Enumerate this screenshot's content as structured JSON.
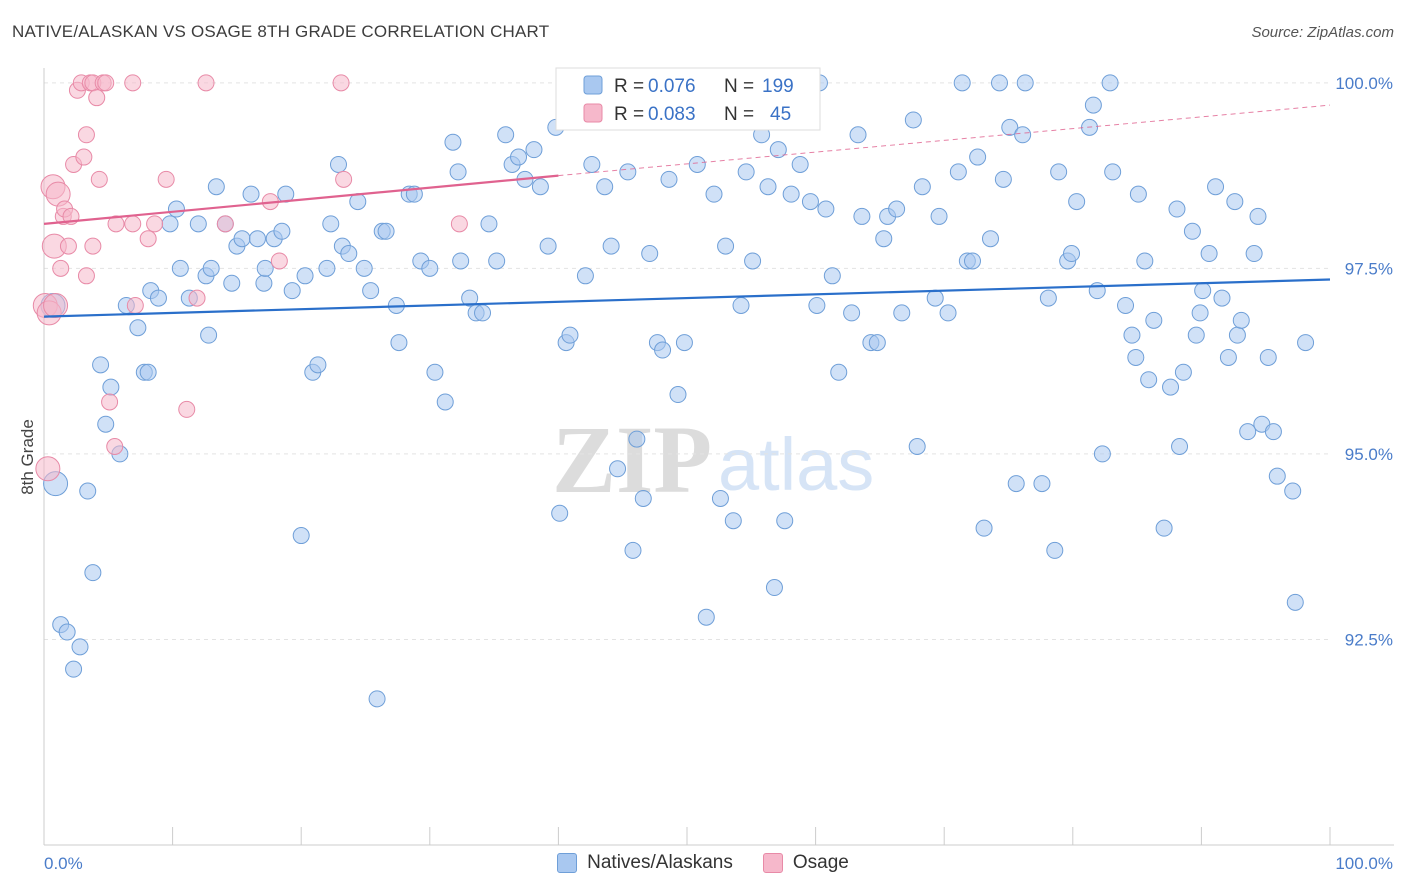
{
  "title": "NATIVE/ALASKAN VS OSAGE 8TH GRADE CORRELATION CHART",
  "source": "Source: ZipAtlas.com",
  "watermark": {
    "zip": "ZIP",
    "atlas": "atlas"
  },
  "stats": [
    {
      "r_label": "R =",
      "r_value": "0.076",
      "n_label": "N =",
      "n_value": "199"
    },
    {
      "r_label": "R =",
      "r_value": "0.083",
      "n_label": "N =",
      "n_value": "45"
    }
  ],
  "colors": {
    "blue_fill": "#a9c8f0",
    "blue_stroke": "#6f9fd8",
    "blue_line": "#2a6fca",
    "pink_fill": "#f6b8cb",
    "pink_stroke": "#e88aa7",
    "pink_line": "#e0628f",
    "tick_label": "#4a7cc9",
    "grid": "#e3e3e3"
  },
  "chart_data": {
    "type": "scatter",
    "title": "NATIVE/ALASKAN VS OSAGE 8TH GRADE CORRELATION CHART",
    "xlabel": "",
    "ylabel": "8th Grade",
    "xlim": [
      0,
      100
    ],
    "ylim": [
      90.0,
      100.2
    ],
    "x_tick_labels": [
      "0.0%",
      "100.0%"
    ],
    "y_ticks": [
      92.5,
      95.0,
      97.5,
      100.0
    ],
    "y_tick_labels": [
      "92.5%",
      "95.0%",
      "97.5%",
      "100.0%"
    ],
    "grid": true,
    "legend_position": "bottom-center",
    "series": [
      {
        "name": "Natives/Alaskans",
        "color": "#a9c8f0",
        "trend": {
          "x": [
            0,
            100
          ],
          "y": [
            96.85,
            97.35
          ],
          "dashed_from": null
        },
        "points": [
          [
            0.7,
            97.0
          ],
          [
            0.9,
            94.6
          ],
          [
            1.3,
            92.7
          ],
          [
            1.8,
            92.6
          ],
          [
            2.3,
            92.1
          ],
          [
            2.8,
            92.4
          ],
          [
            3.4,
            94.5
          ],
          [
            3.8,
            93.4
          ],
          [
            4.4,
            96.2
          ],
          [
            4.8,
            95.4
          ],
          [
            5.2,
            95.9
          ],
          [
            5.9,
            95.0
          ],
          [
            6.4,
            97.0
          ],
          [
            7.3,
            96.7
          ],
          [
            7.8,
            96.1
          ],
          [
            8.1,
            96.1
          ],
          [
            8.3,
            97.2
          ],
          [
            8.9,
            97.1
          ],
          [
            9.8,
            98.1
          ],
          [
            10.3,
            98.3
          ],
          [
            10.6,
            97.5
          ],
          [
            11.3,
            97.1
          ],
          [
            12.0,
            98.1
          ],
          [
            12.6,
            97.4
          ],
          [
            12.8,
            96.6
          ],
          [
            13.0,
            97.5
          ],
          [
            13.4,
            98.6
          ],
          [
            14.1,
            98.1
          ],
          [
            14.6,
            97.3
          ],
          [
            15.0,
            97.8
          ],
          [
            15.4,
            97.9
          ],
          [
            16.1,
            98.5
          ],
          [
            16.6,
            97.9
          ],
          [
            17.1,
            97.3
          ],
          [
            17.2,
            97.5
          ],
          [
            17.9,
            97.9
          ],
          [
            18.5,
            98.0
          ],
          [
            18.8,
            98.5
          ],
          [
            19.3,
            97.2
          ],
          [
            20.0,
            93.9
          ],
          [
            20.3,
            97.4
          ],
          [
            20.9,
            96.1
          ],
          [
            21.3,
            96.2
          ],
          [
            22.0,
            97.5
          ],
          [
            22.3,
            98.1
          ],
          [
            22.9,
            98.9
          ],
          [
            23.2,
            97.8
          ],
          [
            23.7,
            97.7
          ],
          [
            24.4,
            98.4
          ],
          [
            24.9,
            97.5
          ],
          [
            25.4,
            97.2
          ],
          [
            25.9,
            91.7
          ],
          [
            26.3,
            98.0
          ],
          [
            26.6,
            98.0
          ],
          [
            27.4,
            97.0
          ],
          [
            27.6,
            96.5
          ],
          [
            28.4,
            98.5
          ],
          [
            28.8,
            98.5
          ],
          [
            29.3,
            97.6
          ],
          [
            30.0,
            97.5
          ],
          [
            30.4,
            96.1
          ],
          [
            31.2,
            95.7
          ],
          [
            31.8,
            99.2
          ],
          [
            32.2,
            98.8
          ],
          [
            32.4,
            97.6
          ],
          [
            33.1,
            97.1
          ],
          [
            33.6,
            96.9
          ],
          [
            34.1,
            96.9
          ],
          [
            34.6,
            98.1
          ],
          [
            35.2,
            97.6
          ],
          [
            35.9,
            99.3
          ],
          [
            36.4,
            98.9
          ],
          [
            36.9,
            99.0
          ],
          [
            37.4,
            98.7
          ],
          [
            38.1,
            99.1
          ],
          [
            38.6,
            98.6
          ],
          [
            39.2,
            97.8
          ],
          [
            39.8,
            99.4
          ],
          [
            40.1,
            94.2
          ],
          [
            40.6,
            96.5
          ],
          [
            40.9,
            96.6
          ],
          [
            42.1,
            97.4
          ],
          [
            42.6,
            98.9
          ],
          [
            43.6,
            98.6
          ],
          [
            44.1,
            97.8
          ],
          [
            44.6,
            94.8
          ],
          [
            45.4,
            98.8
          ],
          [
            45.8,
            93.7
          ],
          [
            46.1,
            95.2
          ],
          [
            46.6,
            94.4
          ],
          [
            47.1,
            97.7
          ],
          [
            47.7,
            96.5
          ],
          [
            48.1,
            96.4
          ],
          [
            48.6,
            98.7
          ],
          [
            49.3,
            95.8
          ],
          [
            49.8,
            96.5
          ],
          [
            50.8,
            98.9
          ],
          [
            51.5,
            92.8
          ],
          [
            51.8,
            99.9
          ],
          [
            52.1,
            98.5
          ],
          [
            52.6,
            94.4
          ],
          [
            53.0,
            97.8
          ],
          [
            53.6,
            94.1
          ],
          [
            54.2,
            97.0
          ],
          [
            54.6,
            98.8
          ],
          [
            55.1,
            97.6
          ],
          [
            55.8,
            99.3
          ],
          [
            56.3,
            98.6
          ],
          [
            56.8,
            93.2
          ],
          [
            57.1,
            99.1
          ],
          [
            57.6,
            94.1
          ],
          [
            58.1,
            98.5
          ],
          [
            58.8,
            98.9
          ],
          [
            59.6,
            98.4
          ],
          [
            60.1,
            97.0
          ],
          [
            60.3,
            100.0
          ],
          [
            60.8,
            98.3
          ],
          [
            61.3,
            97.4
          ],
          [
            61.8,
            96.1
          ],
          [
            62.8,
            96.9
          ],
          [
            63.3,
            99.3
          ],
          [
            63.6,
            98.2
          ],
          [
            64.3,
            96.5
          ],
          [
            64.8,
            96.5
          ],
          [
            65.3,
            97.9
          ],
          [
            65.6,
            98.2
          ],
          [
            66.3,
            98.3
          ],
          [
            66.7,
            96.9
          ],
          [
            67.6,
            99.5
          ],
          [
            67.9,
            95.1
          ],
          [
            68.3,
            98.6
          ],
          [
            69.3,
            97.1
          ],
          [
            69.6,
            98.2
          ],
          [
            70.3,
            96.9
          ],
          [
            71.1,
            98.8
          ],
          [
            71.4,
            100.0
          ],
          [
            71.8,
            97.6
          ],
          [
            72.2,
            97.6
          ],
          [
            72.6,
            99.0
          ],
          [
            73.1,
            94.0
          ],
          [
            73.6,
            97.9
          ],
          [
            74.3,
            100.0
          ],
          [
            74.6,
            98.7
          ],
          [
            75.1,
            99.4
          ],
          [
            75.6,
            94.6
          ],
          [
            76.1,
            99.3
          ],
          [
            76.3,
            100.0
          ],
          [
            77.6,
            94.6
          ],
          [
            78.1,
            97.1
          ],
          [
            78.6,
            93.7
          ],
          [
            78.9,
            98.8
          ],
          [
            79.6,
            97.6
          ],
          [
            79.9,
            97.7
          ],
          [
            80.3,
            98.4
          ],
          [
            81.3,
            99.4
          ],
          [
            81.6,
            99.7
          ],
          [
            81.9,
            97.2
          ],
          [
            82.3,
            95.0
          ],
          [
            82.9,
            100.0
          ],
          [
            83.1,
            98.8
          ],
          [
            84.1,
            97.0
          ],
          [
            84.6,
            96.6
          ],
          [
            84.9,
            96.3
          ],
          [
            85.1,
            98.5
          ],
          [
            85.6,
            97.6
          ],
          [
            85.9,
            96.0
          ],
          [
            86.3,
            96.8
          ],
          [
            87.1,
            94.0
          ],
          [
            87.6,
            95.9
          ],
          [
            88.1,
            98.3
          ],
          [
            88.3,
            95.1
          ],
          [
            88.6,
            96.1
          ],
          [
            89.3,
            98.0
          ],
          [
            89.6,
            96.6
          ],
          [
            89.9,
            96.9
          ],
          [
            90.1,
            97.2
          ],
          [
            90.6,
            97.7
          ],
          [
            91.1,
            98.6
          ],
          [
            91.6,
            97.1
          ],
          [
            92.1,
            96.3
          ],
          [
            92.6,
            98.4
          ],
          [
            92.8,
            96.6
          ],
          [
            93.1,
            96.8
          ],
          [
            93.6,
            95.3
          ],
          [
            94.1,
            97.7
          ],
          [
            94.4,
            98.2
          ],
          [
            94.7,
            95.4
          ],
          [
            95.2,
            96.3
          ],
          [
            95.6,
            95.3
          ],
          [
            95.9,
            94.7
          ],
          [
            97.1,
            94.5
          ],
          [
            97.3,
            93.0
          ],
          [
            98.1,
            96.5
          ]
        ]
      },
      {
        "name": "Osage",
        "color": "#f6b8cb",
        "trend": {
          "x": [
            0,
            40
          ],
          "y": [
            98.1,
            98.75
          ],
          "dashed_to": [
            100,
            99.7
          ]
        },
        "points": [
          [
            0.1,
            97.0
          ],
          [
            0.3,
            94.8
          ],
          [
            0.4,
            96.9
          ],
          [
            0.7,
            98.6
          ],
          [
            0.8,
            97.8
          ],
          [
            0.9,
            97.0
          ],
          [
            1.1,
            98.5
          ],
          [
            1.3,
            97.5
          ],
          [
            1.5,
            98.2
          ],
          [
            1.6,
            98.3
          ],
          [
            1.9,
            97.8
          ],
          [
            2.1,
            98.2
          ],
          [
            2.3,
            98.9
          ],
          [
            2.6,
            99.9
          ],
          [
            2.9,
            100.0
          ],
          [
            3.1,
            99.0
          ],
          [
            3.3,
            99.3
          ],
          [
            3.3,
            97.4
          ],
          [
            3.6,
            100.0
          ],
          [
            3.8,
            97.8
          ],
          [
            3.8,
            100.0
          ],
          [
            4.1,
            99.8
          ],
          [
            4.3,
            98.7
          ],
          [
            4.6,
            100.0
          ],
          [
            4.8,
            100.0
          ],
          [
            5.1,
            95.7
          ],
          [
            5.5,
            95.1
          ],
          [
            5.6,
            98.1
          ],
          [
            6.9,
            100.0
          ],
          [
            6.9,
            98.1
          ],
          [
            7.1,
            97.0
          ],
          [
            8.1,
            97.9
          ],
          [
            8.6,
            98.1
          ],
          [
            9.5,
            98.7
          ],
          [
            11.1,
            95.6
          ],
          [
            11.9,
            97.1
          ],
          [
            12.6,
            100.0
          ],
          [
            14.1,
            98.1
          ],
          [
            17.6,
            98.4
          ],
          [
            18.3,
            97.6
          ],
          [
            23.1,
            100.0
          ],
          [
            23.3,
            98.7
          ],
          [
            32.3,
            98.1
          ]
        ]
      }
    ]
  },
  "legend": [
    {
      "label": "Natives/Alaskans",
      "color": "#a9c8f0",
      "stroke": "#6f9fd8"
    },
    {
      "label": "Osage",
      "color": "#f6b8cb",
      "stroke": "#e88aa7"
    }
  ]
}
